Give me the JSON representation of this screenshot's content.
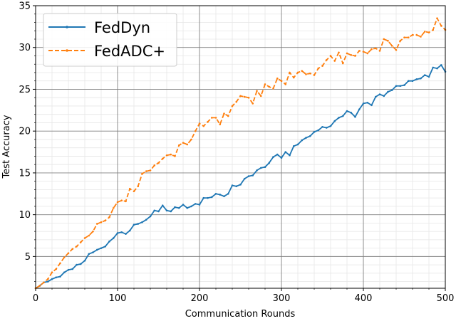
{
  "chart_data": {
    "type": "line",
    "title": "",
    "xlabel": "Communication Rounds",
    "ylabel": "Test Accuracy",
    "xlim": [
      0,
      500
    ],
    "ylim": [
      1.2,
      35
    ],
    "xticks": [
      0,
      100,
      200,
      300,
      400,
      500
    ],
    "yticks": [
      5,
      10,
      15,
      20,
      25,
      30,
      35
    ],
    "grid": {
      "major": true,
      "minor": true
    },
    "legend_position": "top-left",
    "series": [
      {
        "name": "FedDyn",
        "color": "#1f77b4",
        "style": "solid-marker",
        "x": [
          0,
          5,
          10,
          15,
          20,
          25,
          30,
          35,
          40,
          45,
          50,
          55,
          60,
          65,
          70,
          75,
          80,
          85,
          90,
          95,
          100,
          105,
          110,
          115,
          120,
          125,
          130,
          135,
          140,
          145,
          150,
          155,
          160,
          165,
          170,
          175,
          180,
          185,
          190,
          195,
          200,
          205,
          210,
          215,
          220,
          225,
          230,
          235,
          240,
          245,
          250,
          255,
          260,
          265,
          270,
          275,
          280,
          285,
          290,
          295,
          300,
          305,
          310,
          315,
          320,
          325,
          330,
          335,
          340,
          345,
          350,
          355,
          360,
          365,
          370,
          375,
          380,
          385,
          390,
          395,
          400,
          405,
          410,
          415,
          420,
          425,
          430,
          435,
          440,
          445,
          450,
          455,
          460,
          465,
          470,
          475,
          480,
          485,
          490,
          495,
          500
        ],
        "values": [
          1.2,
          1.5,
          1.9,
          2.0,
          2.3,
          2.5,
          2.6,
          3.1,
          3.4,
          3.5,
          4.0,
          4.1,
          4.5,
          5.3,
          5.5,
          5.8,
          6.0,
          6.2,
          6.8,
          7.2,
          7.8,
          7.9,
          7.7,
          8.1,
          8.8,
          8.9,
          9.1,
          9.4,
          9.8,
          10.5,
          10.4,
          11.1,
          10.5,
          10.4,
          10.9,
          10.8,
          11.2,
          10.8,
          11.0,
          11.3,
          11.2,
          12.0,
          12.0,
          12.1,
          12.5,
          12.4,
          12.2,
          12.5,
          13.5,
          13.4,
          13.6,
          14.3,
          14.6,
          14.7,
          15.3,
          15.6,
          15.7,
          16.2,
          16.9,
          17.2,
          16.8,
          17.5,
          17.1,
          18.2,
          18.4,
          18.9,
          19.2,
          19.4,
          19.9,
          20.1,
          20.5,
          20.4,
          20.6,
          21.2,
          21.6,
          21.8,
          22.4,
          22.2,
          21.7,
          22.6,
          23.3,
          23.4,
          23.1,
          24.1,
          24.4,
          24.2,
          24.7,
          24.9,
          25.4,
          25.4,
          25.5,
          26.0,
          26.0,
          26.2,
          26.3,
          26.7,
          26.5,
          27.6,
          27.5,
          27.9,
          27.1
        ]
      },
      {
        "name": "FedADC+",
        "color": "#ff7f0e",
        "style": "dashed-marker",
        "x": [
          0,
          5,
          10,
          15,
          20,
          25,
          30,
          35,
          40,
          45,
          50,
          55,
          60,
          65,
          70,
          75,
          80,
          85,
          90,
          95,
          100,
          105,
          110,
          115,
          120,
          125,
          130,
          135,
          140,
          145,
          150,
          155,
          160,
          165,
          170,
          175,
          180,
          185,
          190,
          195,
          200,
          205,
          210,
          215,
          220,
          225,
          230,
          235,
          240,
          245,
          250,
          255,
          260,
          265,
          270,
          275,
          280,
          285,
          290,
          295,
          300,
          305,
          310,
          315,
          320,
          325,
          330,
          335,
          340,
          345,
          350,
          355,
          360,
          365,
          370,
          375,
          380,
          385,
          390,
          395,
          400,
          405,
          410,
          415,
          420,
          425,
          430,
          435,
          440,
          445,
          450,
          455,
          460,
          465,
          470,
          475,
          480,
          485,
          490,
          495,
          500
        ],
        "values": [
          1.2,
          1.5,
          1.9,
          2.3,
          3.1,
          3.5,
          4.2,
          4.9,
          5.4,
          5.9,
          6.2,
          6.7,
          7.2,
          7.5,
          8.0,
          8.9,
          9.1,
          9.3,
          9.7,
          10.8,
          11.5,
          11.7,
          11.6,
          13.1,
          12.8,
          13.4,
          14.9,
          15.2,
          15.3,
          15.9,
          16.2,
          16.7,
          17.1,
          17.2,
          17.0,
          18.3,
          18.6,
          18.4,
          19.0,
          20.0,
          20.9,
          20.6,
          21.1,
          21.6,
          21.6,
          20.8,
          22.1,
          21.8,
          23.0,
          23.5,
          24.2,
          24.1,
          24.0,
          23.3,
          24.8,
          24.2,
          25.6,
          25.3,
          25.1,
          26.3,
          26.0,
          25.6,
          27.0,
          26.4,
          27.0,
          27.2,
          26.8,
          26.9,
          26.7,
          27.5,
          27.8,
          28.5,
          29.0,
          28.4,
          29.4,
          28.1,
          29.3,
          29.1,
          29.0,
          29.6,
          29.5,
          29.3,
          29.8,
          29.9,
          29.6,
          31.0,
          30.8,
          30.2,
          29.7,
          30.8,
          31.2,
          31.2,
          31.5,
          31.5,
          31.3,
          31.9,
          31.8,
          32.1,
          33.5,
          32.6,
          32.1
        ]
      }
    ]
  }
}
